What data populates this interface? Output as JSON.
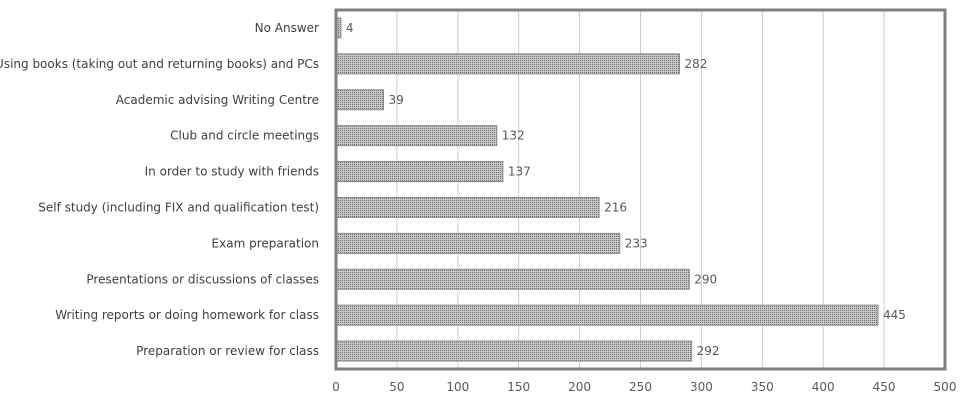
{
  "chart_data": {
    "type": "bar",
    "orientation": "horizontal",
    "categories": [
      "No Answer",
      "Using books (taking out and returning books) and PCs",
      "Academic advising Writing Centre",
      "Club and circle meetings",
      "In order to study with friends",
      "Self study (including FIX and qualification test)",
      "Exam preparation",
      "Presentations or discussions of classes",
      "Writing reports or doing homework for class",
      "Preparation or review for class"
    ],
    "values": [
      4,
      282,
      39,
      132,
      137,
      216,
      233,
      290,
      445,
      292
    ],
    "xlim": [
      0,
      500
    ],
    "xticks": [
      "0",
      "50",
      "100",
      "150",
      "200",
      "250",
      "300",
      "350",
      "400",
      "450",
      "500"
    ],
    "grid": true,
    "legend": "none",
    "title": "",
    "xlabel": "",
    "ylabel": "",
    "colors": {
      "bar_fill": "#bdbdbd",
      "bar_dots": "#7a7a7a",
      "bar_stroke": "#8c8c8c",
      "grid": "#cfcfcf",
      "plot_border": "#7f7f7f"
    }
  }
}
